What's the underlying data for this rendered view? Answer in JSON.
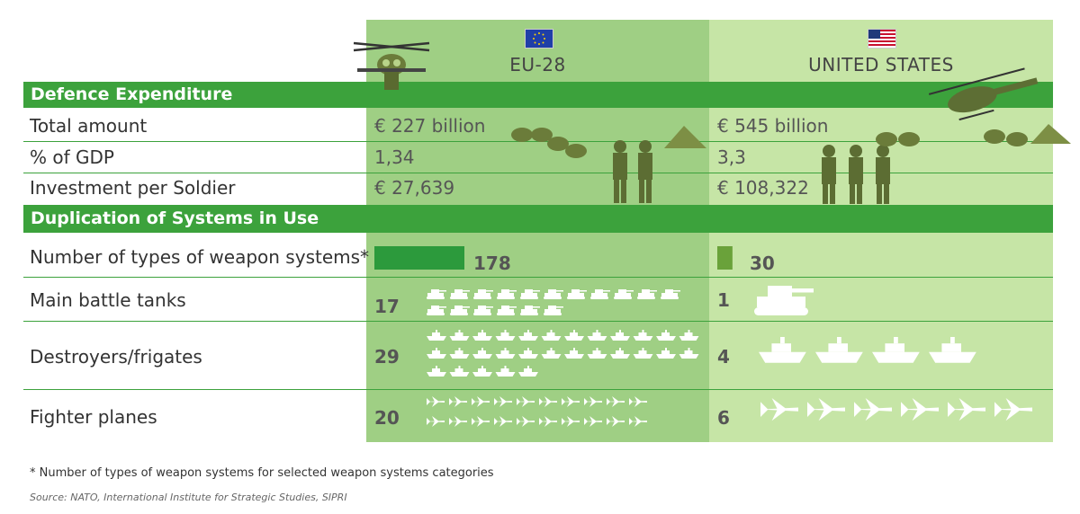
{
  "columns": {
    "eu": "EU-28",
    "us": "UNITED STATES"
  },
  "sections": {
    "defence": "Defence Expenditure",
    "duplication": "Duplication of Systems in Use"
  },
  "rows": {
    "total": {
      "label": "Total amount",
      "eu": "€ 227 billion",
      "us": "€ 545 billion"
    },
    "gdp": {
      "label": "% of GDP",
      "eu": "1,34",
      "us": "3,3"
    },
    "soldier": {
      "label": "Investment per Soldier",
      "eu": "€ 27,639",
      "us": "€ 108,322"
    }
  },
  "chart_data": {
    "type": "table",
    "categories": [
      "Number of types of weapon systems*",
      "Main battle tanks",
      "Destroyers/frigates",
      "Fighter planes"
    ],
    "series": [
      {
        "name": "EU-28",
        "values": [
          178,
          17,
          29,
          20
        ]
      },
      {
        "name": "UNITED STATES",
        "values": [
          30,
          1,
          4,
          6
        ]
      }
    ],
    "colors": {
      "eu_bar": "#2c9a3c",
      "us_bar": "#6aa23a",
      "accent": "#3ca23c"
    }
  },
  "footnote": "* Number of types of weapon systems for selected weapon systems categories",
  "source": "Source: NATO, International Institute for Strategic Studies, SIPRI"
}
